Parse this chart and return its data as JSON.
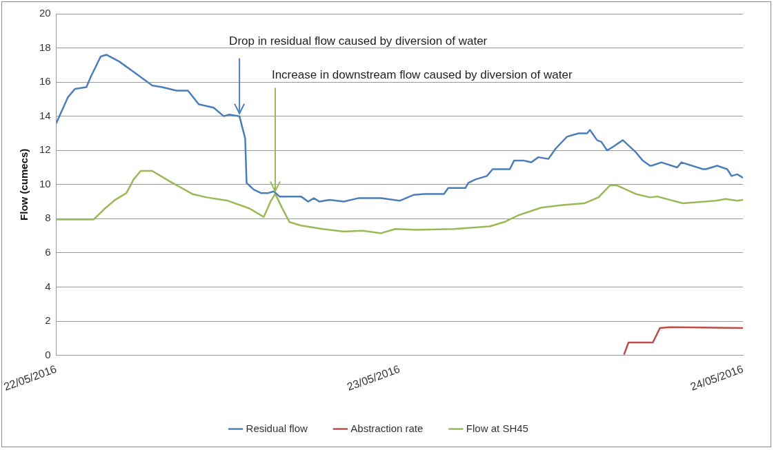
{
  "chart_data": {
    "type": "line",
    "ylabel": "Flow (cumecs)",
    "xlim": [
      "2016-05-22",
      "2016-05-24"
    ],
    "xticks": [
      {
        "value": "2016-05-22",
        "label": "22/05/2016"
      },
      {
        "value": "2016-05-23",
        "label": "23/05/2016"
      },
      {
        "value": "2016-05-24",
        "label": "24/05/2016"
      }
    ],
    "ylim": [
      0,
      20
    ],
    "yticks": [
      0,
      2,
      4,
      6,
      8,
      10,
      12,
      14,
      16,
      18,
      20
    ],
    "grid": "y",
    "legend": "bottom",
    "marker": "none",
    "line_style": "solid",
    "annotations": [
      {
        "text": "Drop in residual flow caused by diversion of water",
        "x": "2016-05-22T12:48",
        "y": 14.0
      },
      {
        "text": "Increase in downstream flow caused by diversion of water",
        "x": "2016-05-22T15:18",
        "y": 9.45
      }
    ],
    "series": [
      {
        "name": "Residual flow",
        "color": "#4a7ebb",
        "x": [
          "2016-05-22T00:00",
          "2016-05-22T00:48",
          "2016-05-22T01:18",
          "2016-05-22T02:06",
          "2016-05-22T02:24",
          "2016-05-22T03:06",
          "2016-05-22T03:30",
          "2016-05-22T04:24",
          "2016-05-22T05:24",
          "2016-05-22T06:42",
          "2016-05-22T07:24",
          "2016-05-22T08:24",
          "2016-05-22T09:12",
          "2016-05-22T09:57",
          "2016-05-22T11:00",
          "2016-05-22T11:42",
          "2016-05-22T12:06",
          "2016-05-22T12:48",
          "2016-05-22T13:12",
          "2016-05-22T13:18",
          "2016-05-22T13:48",
          "2016-05-22T14:18",
          "2016-05-22T14:48",
          "2016-05-22T15:12",
          "2016-05-22T15:36",
          "2016-05-22T17:06",
          "2016-05-22T17:36",
          "2016-05-22T18:00",
          "2016-05-22T18:24",
          "2016-05-22T19:06",
          "2016-05-22T20:06",
          "2016-05-22T21:06",
          "2016-05-22T22:42",
          "2016-05-23T00:00",
          "2016-05-23T01:00",
          "2016-05-23T01:42",
          "2016-05-23T03:06",
          "2016-05-23T03:24",
          "2016-05-23T04:36",
          "2016-05-23T04:48",
          "2016-05-23T05:18",
          "2016-05-23T06:06",
          "2016-05-23T06:30",
          "2016-05-23T07:00",
          "2016-05-23T07:42",
          "2016-05-23T08:00",
          "2016-05-23T08:42",
          "2016-05-23T09:12",
          "2016-05-23T09:42",
          "2016-05-23T10:24",
          "2016-05-23T10:54",
          "2016-05-23T11:42",
          "2016-05-23T12:30",
          "2016-05-23T13:06",
          "2016-05-23T13:18",
          "2016-05-23T13:48",
          "2016-05-23T14:06",
          "2016-05-23T14:30",
          "2016-05-23T14:54",
          "2016-05-23T15:36",
          "2016-05-23T16:30",
          "2016-05-23T17:00",
          "2016-05-23T17:30",
          "2016-05-23T17:36",
          "2016-05-23T18:18",
          "2016-05-23T19:24",
          "2016-05-23T19:42",
          "2016-05-23T21:12",
          "2016-05-23T21:24",
          "2016-05-23T22:12",
          "2016-05-23T22:54",
          "2016-05-23T23:12",
          "2016-05-23T23:36",
          "2016-05-24T00:00"
        ],
        "values": [
          13.6,
          15.1,
          15.6,
          15.7,
          16.3,
          17.5,
          17.6,
          17.2,
          16.6,
          15.8,
          15.7,
          15.5,
          15.5,
          14.7,
          14.5,
          14.0,
          14.1,
          14.0,
          12.7,
          10.1,
          9.7,
          9.5,
          9.5,
          9.6,
          9.3,
          9.3,
          9.0,
          9.2,
          9.0,
          9.1,
          9.0,
          9.2,
          9.2,
          9.05,
          9.4,
          9.45,
          9.45,
          9.8,
          9.8,
          10.1,
          10.3,
          10.5,
          10.9,
          10.9,
          10.9,
          11.4,
          11.4,
          11.3,
          11.6,
          11.5,
          12.1,
          12.8,
          13.0,
          13.0,
          13.2,
          12.6,
          12.5,
          12.0,
          12.2,
          12.6,
          11.9,
          11.4,
          11.1,
          11.1,
          11.3,
          11.0,
          11.3,
          10.9,
          10.9,
          11.1,
          10.9,
          10.5,
          10.6,
          10.4
        ]
      },
      {
        "name": "Abstraction rate",
        "color": "#be4b48",
        "x": [
          "2016-05-23T15:42",
          "2016-05-23T16:00",
          "2016-05-23T17:42",
          "2016-05-23T18:12",
          "2016-05-23T18:54",
          "2016-05-24T00:00"
        ],
        "values": [
          0.08,
          0.75,
          0.75,
          1.6,
          1.65,
          1.6
        ]
      },
      {
        "name": "Flow at SH45",
        "color": "#98b954",
        "x": [
          "2016-05-22T00:00",
          "2016-05-22T02:36",
          "2016-05-22T03:24",
          "2016-05-22T04:06",
          "2016-05-22T04:54",
          "2016-05-22T05:24",
          "2016-05-22T05:54",
          "2016-05-22T06:42",
          "2016-05-22T07:54",
          "2016-05-22T09:30",
          "2016-05-22T10:30",
          "2016-05-22T12:00",
          "2016-05-22T13:30",
          "2016-05-22T14:30",
          "2016-05-22T15:00",
          "2016-05-22T15:18",
          "2016-05-22T15:48",
          "2016-05-22T16:18",
          "2016-05-22T17:06",
          "2016-05-22T18:36",
          "2016-05-22T20:06",
          "2016-05-22T21:24",
          "2016-05-22T22:42",
          "2016-05-22T23:42",
          "2016-05-23T01:12",
          "2016-05-23T03:48",
          "2016-05-23T06:18",
          "2016-05-23T07:18",
          "2016-05-23T08:18",
          "2016-05-23T09:54",
          "2016-05-23T11:24",
          "2016-05-23T12:54",
          "2016-05-23T13:54",
          "2016-05-23T14:42",
          "2016-05-23T15:12",
          "2016-05-23T16:30",
          "2016-05-23T17:30",
          "2016-05-23T18:00",
          "2016-05-23T19:48",
          "2016-05-23T22:06",
          "2016-05-23T22:48",
          "2016-05-23T23:36",
          "2016-05-24T00:00"
        ],
        "values": [
          7.95,
          7.95,
          8.6,
          9.1,
          9.5,
          10.3,
          10.8,
          10.8,
          10.2,
          9.45,
          9.25,
          9.05,
          8.6,
          8.1,
          9.05,
          9.45,
          8.6,
          7.8,
          7.6,
          7.4,
          7.25,
          7.3,
          7.15,
          7.4,
          7.35,
          7.4,
          7.55,
          7.8,
          8.2,
          8.65,
          8.8,
          8.9,
          9.25,
          9.95,
          9.95,
          9.45,
          9.25,
          9.3,
          8.9,
          9.05,
          9.15,
          9.05,
          9.1
        ]
      }
    ]
  }
}
